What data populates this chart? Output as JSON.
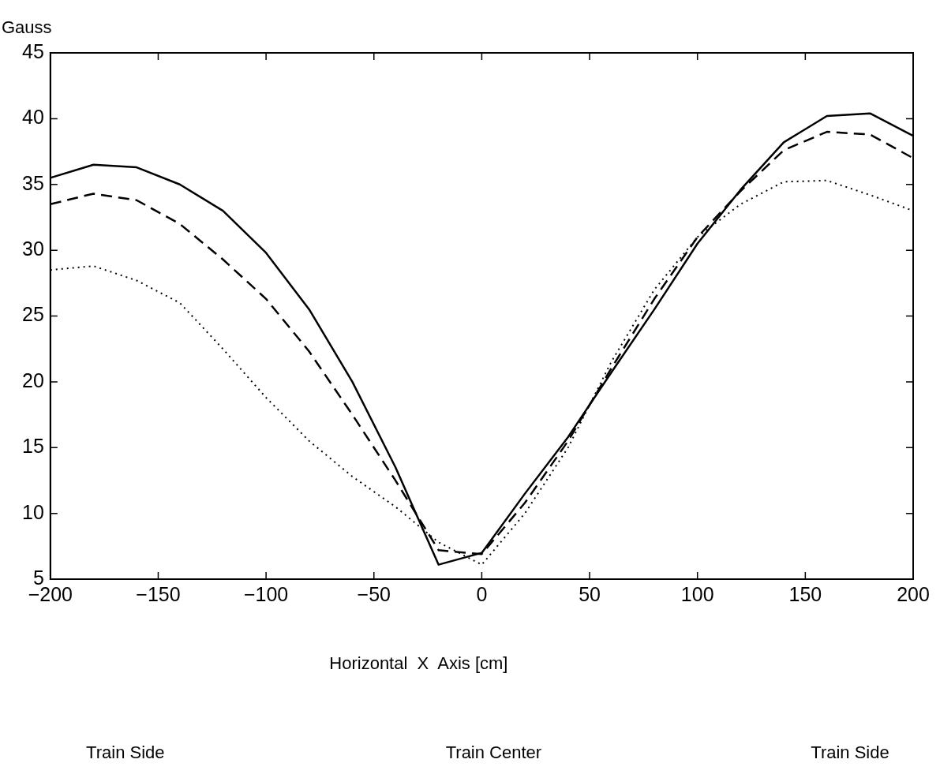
{
  "chart_data": {
    "type": "line",
    "ylabel": "Gauss",
    "xlabel": "Horizontal  X  Axis [cm]",
    "x": [
      -200,
      -180,
      -160,
      -140,
      -120,
      -100,
      -80,
      -60,
      -40,
      -20,
      0,
      20,
      40,
      60,
      80,
      100,
      120,
      140,
      160,
      180,
      200
    ],
    "series": [
      {
        "color": "#000000",
        "line_style": "solid",
        "values": [
          35.5,
          36.5,
          36.3,
          35,
          33,
          29.8,
          25.5,
          20,
          13.5,
          6.1,
          7,
          11.5,
          15.8,
          20.7,
          25.5,
          30.5,
          34.6,
          38.2,
          40.2,
          40.4,
          38.7
        ]
      },
      {
        "color": "#000000",
        "line_style": "dashed",
        "values": [
          33.5,
          34.3,
          33.8,
          32,
          29.3,
          26.3,
          22.3,
          17.5,
          12.5,
          7.2,
          6.9,
          10.8,
          15.5,
          21,
          26.3,
          31,
          34.5,
          37.6,
          39,
          38.8,
          37
        ]
      },
      {
        "color": "#000000",
        "line_style": "dotted",
        "values": [
          28.5,
          28.8,
          27.7,
          26,
          22.5,
          18.8,
          15.5,
          12.8,
          10.5,
          7.8,
          6.1,
          10,
          15,
          21.5,
          27,
          31,
          33.5,
          35.2,
          35.3,
          34.2,
          33
        ]
      }
    ],
    "xlim": [
      -200,
      200
    ],
    "xticks": [
      -200,
      -150,
      -100,
      -50,
      0,
      50,
      100,
      150,
      200
    ],
    "ylim": [
      5,
      45
    ],
    "yticks": [
      5,
      10,
      15,
      20,
      25,
      30,
      35,
      40,
      45
    ],
    "grid": false,
    "legend": false,
    "marker": "none",
    "annotations": [
      "Train Side",
      "Train Center",
      "Train Side"
    ]
  }
}
